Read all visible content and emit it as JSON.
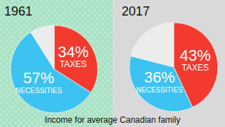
{
  "chart_data": [
    {
      "type": "pie",
      "title": "1961",
      "categories": [
        "TAXES",
        "NECESSITIES",
        null
      ],
      "values": [
        34,
        57,
        9
      ],
      "value_labels": [
        "34%",
        "57%",
        null
      ],
      "colors": [
        "#f23a2f",
        "#3cc3f2",
        "#ececec"
      ],
      "data_labels": true
    },
    {
      "type": "pie",
      "title": "2017",
      "categories": [
        "TAXES",
        "NECESSITIES",
        null
      ],
      "values": [
        43,
        36,
        21
      ],
      "value_labels": [
        "43%",
        "36%",
        null
      ],
      "colors": [
        "#f23a2f",
        "#3cc3f2",
        "#ececec"
      ],
      "data_labels": true
    }
  ],
  "caption": "Income for average Canadian family"
}
